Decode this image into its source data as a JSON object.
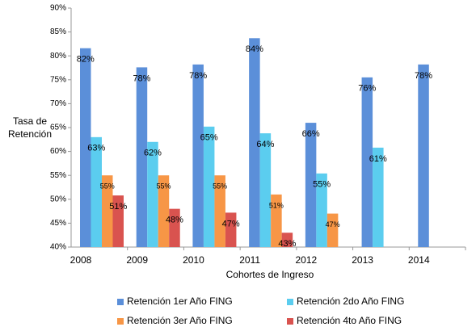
{
  "chart_data": {
    "type": "bar",
    "x_label": "Cohortes de Ingreso",
    "y_label": "Tasa de Retención",
    "categories": [
      "2008",
      "2009",
      "2010",
      "2011",
      "2012",
      "2013",
      "2014"
    ],
    "series": [
      {
        "name": "Retención 1er Año FING",
        "color": "#5b8fd9",
        "values": [
          81.6,
          77.6,
          78.2,
          83.7,
          66,
          75.5,
          78.2
        ],
        "value_labels": [
          "82%",
          "78%",
          "78%",
          "84%",
          "66%",
          "76%",
          "78%"
        ]
      },
      {
        "name": "Retención 2do  Año FING",
        "color": "#5bcdef",
        "values": [
          63,
          62,
          65.2,
          63.8,
          55.4,
          60.8,
          null
        ],
        "value_labels": [
          "63%",
          "62%",
          "65%",
          "64%",
          "55%",
          "61%",
          null
        ]
      },
      {
        "name": "Retención 3er Año FING",
        "color": "#f79646",
        "values": [
          55,
          55,
          55,
          51,
          47,
          null,
          null
        ],
        "value_labels": [
          "55%",
          "55%",
          "55%",
          "51%",
          "47%",
          null,
          null
        ]
      },
      {
        "name": "Retención 4to Año FING",
        "color": "#d9534f",
        "values": [
          50.8,
          48,
          47.2,
          43,
          null,
          null,
          null
        ],
        "value_labels": [
          "51%",
          "48%",
          "47%",
          "43%",
          null,
          null,
          null
        ]
      }
    ],
    "ylim": [
      40,
      90
    ],
    "yticks": [
      {
        "value": 40,
        "label": "40%"
      },
      {
        "value": 45,
        "label": "45%"
      },
      {
        "value": 50,
        "label": "50%"
      },
      {
        "value": 55,
        "label": "55%"
      },
      {
        "value": 60,
        "label": "60%"
      },
      {
        "value": 65,
        "label": "65%"
      },
      {
        "value": 70,
        "label": "70%"
      },
      {
        "value": 75,
        "label": "75%"
      },
      {
        "value": 80,
        "label": "80%"
      },
      {
        "value": 85,
        "label": "85%"
      },
      {
        "value": 90,
        "label": "90%"
      }
    ],
    "grid": false,
    "legend": "bottom"
  }
}
